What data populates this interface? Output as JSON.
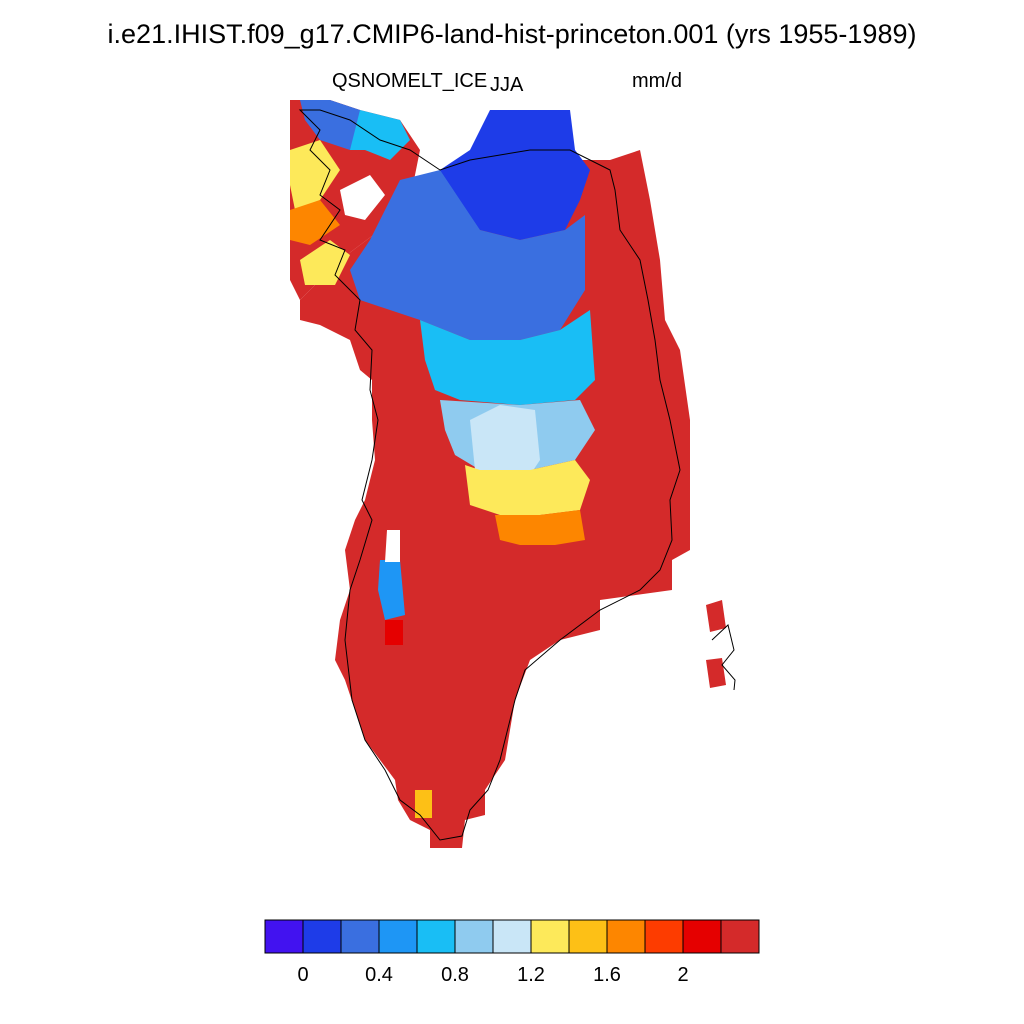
{
  "title": "i.e21.IHIST.f09_g17.CMIP6-land-hist-princeton.001 (yrs 1955-1989)",
  "variable": "QSNOMELT_ICE",
  "season": "JJA",
  "units": "mm/d",
  "map": {
    "region": "Greenland",
    "projection": "polar stereographic",
    "coastlines": true,
    "dominant_value_class": "> 2.0"
  },
  "colorbar": {
    "orientation": "horizontal",
    "colors": [
      "#4212f0",
      "#1e3ce8",
      "#3a6fe0",
      "#1e96f5",
      "#19bef5",
      "#8fcbef",
      "#c9e6f7",
      "#fde95a",
      "#fdc016",
      "#fd8600",
      "#fd3c00",
      "#e50000",
      "#d42a2a"
    ],
    "tick_labels": [
      "0",
      "0.4",
      "0.8",
      "1.2",
      "1.6",
      "2"
    ]
  }
}
